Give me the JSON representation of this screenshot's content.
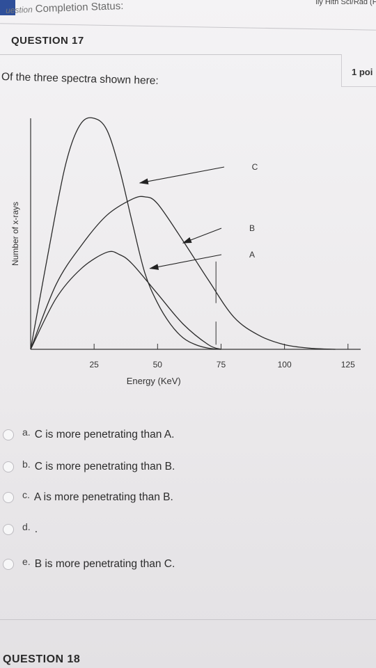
{
  "header": {
    "status_prefix": "uestion",
    "status_label": "Completion Status:",
    "top_right": "lly Hlth Sci/Rad (PH"
  },
  "question": {
    "title": "QUESTION 17",
    "points": "1 poi",
    "prompt": "Of the three spectra shown here:"
  },
  "chart_data": {
    "type": "line",
    "xlabel": "Energy (KeV)",
    "ylabel": "Number of x-rays",
    "xlim": [
      0,
      130
    ],
    "ylim": [
      0,
      100
    ],
    "x_ticks": [
      25,
      50,
      75,
      100,
      125
    ],
    "x_tick_labels": [
      "25",
      "50",
      "75",
      "100",
      "125"
    ],
    "series": [
      {
        "name": "C",
        "x": [
          0,
          10,
          15,
          20,
          25,
          30,
          35,
          40,
          45,
          50,
          55,
          60,
          65,
          70,
          75
        ],
        "values": [
          0,
          60,
          85,
          98,
          100,
          95,
          78,
          55,
          33,
          20,
          11,
          5,
          2,
          0.5,
          0
        ]
      },
      {
        "name": "B",
        "x": [
          0,
          10,
          20,
          30,
          40,
          45,
          50,
          60,
          70,
          80,
          90,
          100,
          110,
          120
        ],
        "values": [
          0,
          28,
          45,
          58,
          65,
          66,
          63,
          47,
          30,
          14,
          6,
          2,
          0.5,
          0
        ]
      },
      {
        "name": "A",
        "x": [
          0,
          10,
          20,
          30,
          35,
          40,
          50,
          60,
          70,
          75
        ],
        "values": [
          0,
          22,
          35,
          42,
          41,
          37,
          24,
          11,
          2,
          0
        ]
      }
    ],
    "annotations": [
      {
        "label": "C",
        "target_x": 43,
        "target_y": 72
      },
      {
        "label": "B",
        "target_x": 60,
        "target_y": 46
      },
      {
        "label": "A",
        "target_x": 47,
        "target_y": 35
      }
    ],
    "markers_x": [
      73,
      73
    ],
    "grid": false,
    "legend": "none"
  },
  "answers": [
    {
      "letter": "a.",
      "text": "C is more penetrating than A."
    },
    {
      "letter": "b.",
      "text": "C is more penetrating than B."
    },
    {
      "letter": "c.",
      "text": "A is more penetrating than B."
    },
    {
      "letter": "d.",
      "text": "."
    },
    {
      "letter": "e.",
      "text": "B is more penetrating than C."
    }
  ],
  "next_question": "QUESTION 18",
  "colors": {
    "accent": "#2f4f9a",
    "ink": "#2c2c2c"
  }
}
